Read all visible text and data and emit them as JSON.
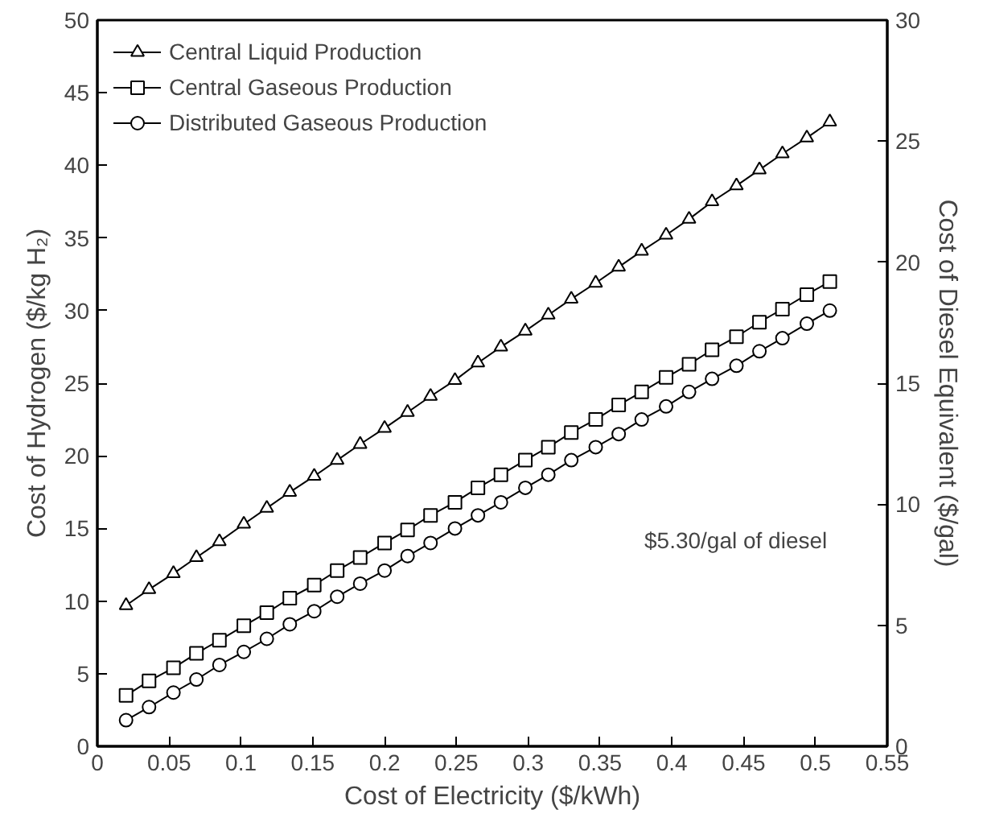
{
  "chart_data": {
    "type": "line",
    "xlabel": "Cost of Electricity ($/kWh)",
    "ylabel": "Cost of Hydrogen ($/kg H₂)",
    "y2label": "Cost of Diesel Equivalent ($/gal)",
    "x": [
      0.02,
      0.036,
      0.053,
      0.069,
      0.085,
      0.102,
      0.118,
      0.134,
      0.151,
      0.167,
      0.183,
      0.2,
      0.216,
      0.232,
      0.249,
      0.265,
      0.281,
      0.298,
      0.314,
      0.33,
      0.347,
      0.363,
      0.379,
      0.396,
      0.412,
      0.428,
      0.445,
      0.461,
      0.477,
      0.494,
      0.51
    ],
    "series": [
      {
        "name": "Central Liquid Production",
        "color": "#000000",
        "marker": "triangle",
        "values": [
          9.7,
          10.8,
          11.9,
          13.0,
          14.1,
          15.3,
          16.4,
          17.5,
          18.6,
          19.7,
          20.8,
          21.9,
          23.0,
          24.1,
          25.2,
          26.4,
          27.5,
          28.6,
          29.7,
          30.8,
          31.9,
          33.0,
          34.1,
          35.2,
          36.3,
          37.5,
          38.6,
          39.7,
          40.8,
          41.9,
          43.0
        ]
      },
      {
        "name": "Central Gaseous Production",
        "color": "#000000",
        "marker": "square",
        "values": [
          3.5,
          4.5,
          5.4,
          6.4,
          7.3,
          8.3,
          9.2,
          10.2,
          11.1,
          12.1,
          13.0,
          14.0,
          14.9,
          15.9,
          16.8,
          17.8,
          18.7,
          19.7,
          20.6,
          21.6,
          22.5,
          23.5,
          24.4,
          25.4,
          26.3,
          27.3,
          28.2,
          29.2,
          30.1,
          31.1,
          32.0
        ]
      },
      {
        "name": "Distributed Gaseous Production",
        "color": "#000000",
        "marker": "circle",
        "values": [
          1.8,
          2.7,
          3.7,
          4.6,
          5.6,
          6.5,
          7.4,
          8.4,
          9.3,
          10.3,
          11.2,
          12.1,
          13.1,
          14.0,
          15.0,
          15.9,
          16.8,
          17.8,
          18.7,
          19.7,
          20.6,
          21.5,
          22.5,
          23.4,
          24.4,
          25.3,
          26.2,
          27.2,
          28.1,
          29.1,
          30.0
        ]
      }
    ],
    "xlim": [
      0,
      0.55
    ],
    "xticks": [
      0,
      0.05,
      0.1,
      0.15,
      0.2,
      0.25,
      0.3,
      0.35,
      0.4,
      0.45,
      0.5,
      0.55
    ],
    "ylim": [
      0,
      50
    ],
    "yticks": [
      0,
      5,
      10,
      15,
      20,
      25,
      30,
      35,
      40,
      45,
      50
    ],
    "y2lim": [
      0,
      30
    ],
    "y2ticks": [
      0,
      5,
      10,
      15,
      20,
      25,
      30
    ],
    "annotations": [
      "$5.30/gal of diesel"
    ],
    "legend": "top left",
    "grid": false,
    "line_style": "solid"
  }
}
